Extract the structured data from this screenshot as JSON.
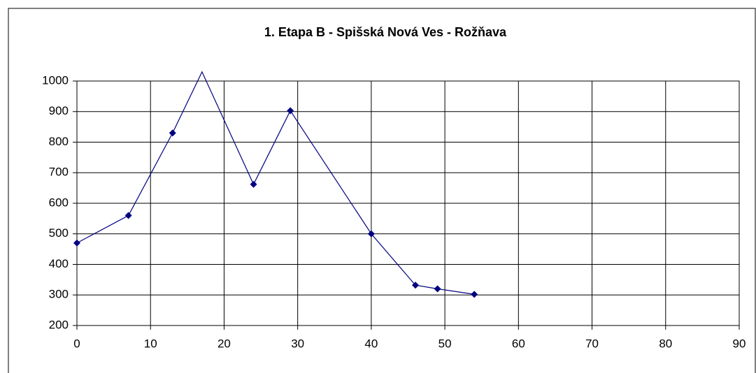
{
  "chart_data": {
    "type": "line",
    "title": "1. Etapa B - Spišská Nová Ves - Rožňava",
    "x": [
      0,
      7,
      13,
      17,
      24,
      29,
      40,
      46,
      49,
      54
    ],
    "series": [
      {
        "color": "#000080",
        "values": [
          470,
          560,
          830,
          1030,
          662,
          903,
          500,
          332,
          320,
          302
        ]
      }
    ],
    "xlim": [
      0,
      90
    ],
    "xticks": [
      0,
      10,
      20,
      30,
      40,
      50,
      60,
      70,
      80,
      90
    ],
    "ylim": [
      200,
      1000
    ],
    "yticks": [
      200,
      300,
      400,
      500,
      600,
      700,
      800,
      900,
      1000
    ],
    "grid": true,
    "marker": "diamond"
  }
}
